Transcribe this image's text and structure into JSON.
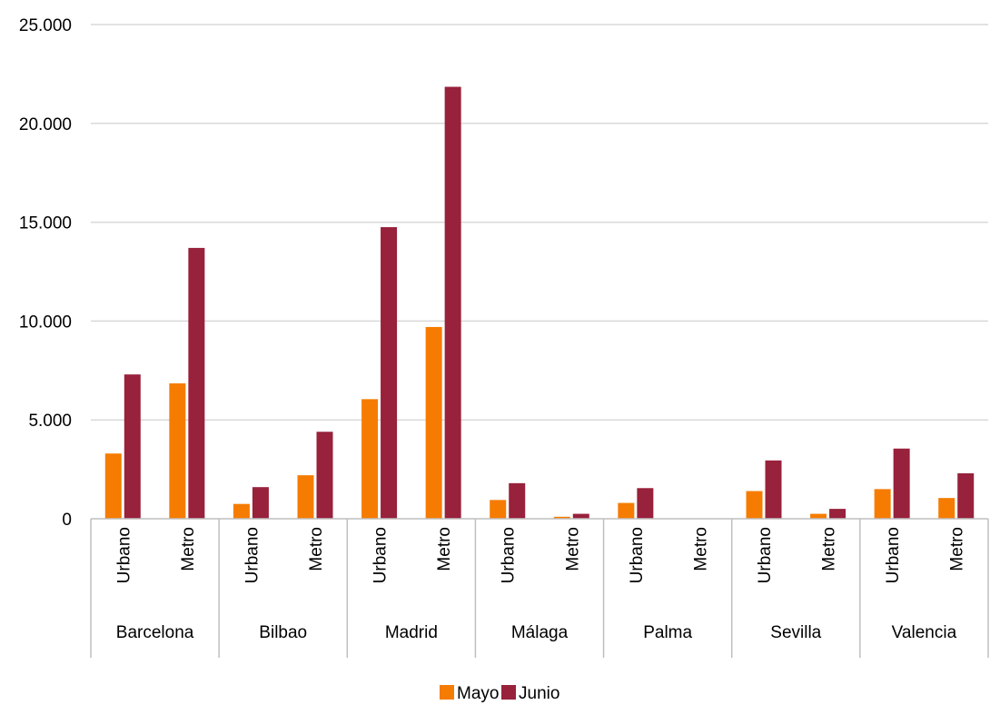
{
  "chart_data": {
    "type": "bar",
    "title": "",
    "xlabel": "",
    "ylabel": "",
    "ylim": [
      0,
      25000
    ],
    "yticks": [
      0,
      5000,
      10000,
      15000,
      20000,
      25000
    ],
    "ytick_labels": [
      "0",
      "5.000",
      "10.000",
      "15.000",
      "20.000",
      "25.000"
    ],
    "grid": true,
    "legend_position": "bottom",
    "groups": [
      "Barcelona",
      "Bilbao",
      "Madrid",
      "Málaga",
      "Palma",
      "Sevilla",
      "Valencia"
    ],
    "subcategories": [
      "Urbano",
      "Metro"
    ],
    "categories": [
      "Barcelona Urbano",
      "Barcelona Metro",
      "Bilbao Urbano",
      "Bilbao Metro",
      "Madrid Urbano",
      "Madrid Metro",
      "Málaga Urbano",
      "Málaga Metro",
      "Palma Urbano",
      "Palma Metro",
      "Sevilla Urbano",
      "Sevilla Metro",
      "Valencia Urbano",
      "Valencia Metro"
    ],
    "series": [
      {
        "name": "Mayo",
        "color": "#F57C00",
        "values": [
          3300,
          6850,
          750,
          2200,
          6050,
          9700,
          950,
          100,
          800,
          0,
          1400,
          250,
          1500,
          1050
        ]
      },
      {
        "name": "Junio",
        "color": "#98213B",
        "values": [
          7300,
          13700,
          1600,
          4400,
          14750,
          21850,
          1800,
          250,
          1550,
          0,
          2950,
          500,
          3550,
          2300
        ]
      }
    ]
  }
}
